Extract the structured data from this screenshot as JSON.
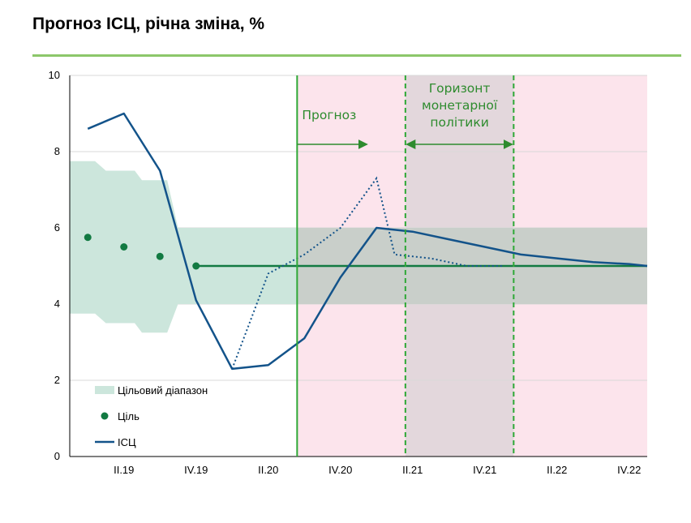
{
  "title": "Прогноз ІСЦ, річна зміна, %",
  "colors": {
    "rule": "#8cc76a",
    "band": "#cce6dc",
    "target": "#127a42",
    "cpi": "#13538a",
    "forecast_bg": "#fce4ec",
    "horizon_bg": "#e3d7dc",
    "overlap": "#c9cfca",
    "annotation": "#2e8b2e",
    "grid": "#d9d9d9"
  },
  "chart_data": {
    "type": "line",
    "title": "Прогноз ІСЦ, річна зміна, %",
    "xlabel": "",
    "ylabel": "",
    "ylim": [
      0,
      10
    ],
    "xlim": [
      0,
      16
    ],
    "yticks": [
      0,
      2,
      4,
      6,
      8,
      10
    ],
    "xticks": [
      {
        "x": 1.5,
        "label": "II.19"
      },
      {
        "x": 3.5,
        "label": "IV.19"
      },
      {
        "x": 5.5,
        "label": "II.20"
      },
      {
        "x": 7.5,
        "label": "IV.20"
      },
      {
        "x": 9.5,
        "label": "II.21"
      },
      {
        "x": 11.5,
        "label": "IV.21"
      },
      {
        "x": 13.5,
        "label": "II.22"
      },
      {
        "x": 15.5,
        "label": "IV.22"
      }
    ],
    "grid": true,
    "target_range_band": {
      "upper": [
        [
          0,
          7.75
        ],
        [
          0.7,
          7.75
        ],
        [
          1.0,
          7.5
        ],
        [
          1.8,
          7.5
        ],
        [
          2.0,
          7.25
        ],
        [
          2.7,
          7.25
        ],
        [
          3.0,
          6.0
        ],
        [
          16,
          6.0
        ]
      ],
      "lower": [
        [
          0,
          3.75
        ],
        [
          0.7,
          3.75
        ],
        [
          1.0,
          3.5
        ],
        [
          1.8,
          3.5
        ],
        [
          2.0,
          3.25
        ],
        [
          2.7,
          3.25
        ],
        [
          3.0,
          4.0
        ],
        [
          16,
          4.0
        ]
      ]
    },
    "series": [
      {
        "name": "Ціль",
        "kind": "dots",
        "x": [
          0.5,
          1.5,
          2.5
        ],
        "y": [
          5.75,
          5.5,
          5.25
        ]
      },
      {
        "name": "Ціль",
        "kind": "line",
        "x": [
          3.5,
          16
        ],
        "y": [
          5.0,
          5.0
        ]
      },
      {
        "name": "ІСЦ",
        "kind": "line",
        "x": [
          0.5,
          1.5,
          2.5,
          3.5,
          4.5,
          5.5,
          6.5,
          7.5,
          8.5,
          9.5,
          10.5,
          11.5,
          12.5,
          13.5,
          14.5,
          15.5,
          16.0
        ],
        "y": [
          8.6,
          9.0,
          7.5,
          4.1,
          2.3,
          2.4,
          3.1,
          4.7,
          6.0,
          5.9,
          5.7,
          5.5,
          5.3,
          5.2,
          5.1,
          5.05,
          5.0
        ]
      },
      {
        "name": "",
        "kind": "dotted",
        "x": [
          4.5,
          5.5,
          6.5,
          7.5,
          8.5,
          9.0,
          10.0,
          11.0,
          12.0
        ],
        "y": [
          2.3,
          4.8,
          5.3,
          6.0,
          7.3,
          5.3,
          5.2,
          5.0,
          5.0
        ]
      }
    ],
    "forecast_start_x": 6.3,
    "horizon_x": [
      9.3,
      12.3
    ],
    "annotations": {
      "forecast_label": "Прогноз",
      "horizon_label_lines": [
        "Горизонт",
        "монетарної",
        "політики"
      ]
    },
    "legend": {
      "placement": "bottom-left",
      "entries": [
        "Цільовий діапазон",
        "Ціль",
        "ІСЦ"
      ]
    }
  }
}
